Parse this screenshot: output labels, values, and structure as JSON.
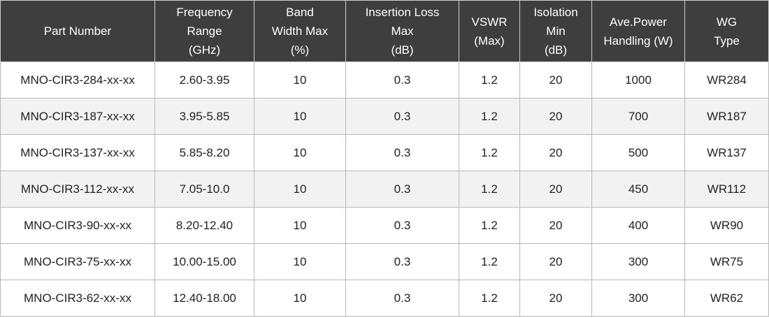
{
  "columns": [
    {
      "lines": [
        "Part Number"
      ]
    },
    {
      "lines": [
        "Frequency",
        "Range",
        "(GHz)"
      ]
    },
    {
      "lines": [
        "Band",
        "Width Max",
        "(%)"
      ]
    },
    {
      "lines": [
        "Insertion Loss",
        "Max",
        "(dB)"
      ]
    },
    {
      "lines": [
        "VSWR",
        "(Max)"
      ]
    },
    {
      "lines": [
        "Isolation",
        "Min",
        "(dB)"
      ]
    },
    {
      "lines": [
        "Ave.Power",
        "Handling (W)"
      ]
    },
    {
      "lines": [
        "WG",
        "Type"
      ]
    }
  ],
  "rows": [
    [
      "MNO-CIR3-284-xx-xx",
      "2.60-3.95",
      "10",
      "0.3",
      "1.2",
      "20",
      "1000",
      "WR284"
    ],
    [
      "MNO-CIR3-187-xx-xx",
      "3.95-5.85",
      "10",
      "0.3",
      "1.2",
      "20",
      "700",
      "WR187"
    ],
    [
      "MNO-CIR3-137-xx-xx",
      "5.85-8.20",
      "10",
      "0.3",
      "1.2",
      "20",
      "500",
      "WR137"
    ],
    [
      "MNO-CIR3-112-xx-xx",
      "7.05-10.0",
      "10",
      "0.3",
      "1.2",
      "20",
      "450",
      "WR112"
    ],
    [
      "MNO-CIR3-90-xx-xx",
      "8.20-12.40",
      "10",
      "0.3",
      "1.2",
      "20",
      "400",
      "WR90"
    ],
    [
      "MNO-CIR3-75-xx-xx",
      "10.00-15.00",
      "10",
      "0.3",
      "1.2",
      "20",
      "300",
      "WR75"
    ],
    [
      "MNO-CIR3-62-xx-xx",
      "12.40-18.00",
      "10",
      "0.3",
      "1.2",
      "20",
      "300",
      "WR62"
    ]
  ],
  "colors": {
    "header_bg": "#3e3e3e",
    "header_text": "#ffffff",
    "row_shade": "#f2f2f2",
    "row_plain": "#ffffff",
    "border": "#b8b8b8"
  }
}
